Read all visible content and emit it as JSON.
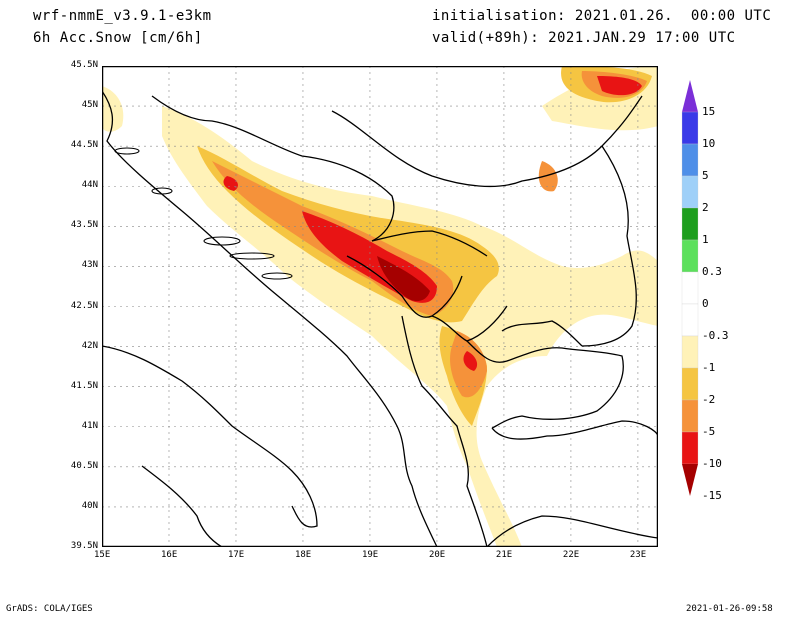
{
  "header": {
    "model": "wrf-nmmE_v3.9.1-e3km",
    "field": "6h Acc.Snow [cm/6h]",
    "init": "initialisation: 2021.01.26.  00:00 UTC",
    "valid": "valid(+89h): 2021.JAN.29 17:00 UTC"
  },
  "axes": {
    "lat_labels": [
      "45.5N",
      "45N",
      "44.5N",
      "44N",
      "43.5N",
      "43N",
      "42.5N",
      "42N",
      "41.5N",
      "41N",
      "40.5N",
      "40N",
      "39.5N"
    ],
    "lon_labels": [
      "15E",
      "16E",
      "17E",
      "18E",
      "19E",
      "20E",
      "21E",
      "22E",
      "23E"
    ],
    "lat_range": [
      39.5,
      45.5
    ],
    "lon_range": [
      15,
      23.3
    ]
  },
  "legend": {
    "labels": [
      "15",
      "10",
      "5",
      "2",
      "1",
      "0.3",
      "0",
      "-0.3",
      "-1",
      "-2",
      "-5",
      "-10",
      "-15"
    ],
    "colors": [
      "#7b2fd8",
      "#3a3ae8",
      "#4f8fe8",
      "#9fd0f8",
      "#1e9e1e",
      "#5ce05c",
      "#ffffff",
      "#ffffff",
      "#fff2b8",
      "#f5c542",
      "#f5923a",
      "#e81414",
      "#a50000"
    ]
  },
  "footer": {
    "left": "GrADS: COLA/IGES",
    "right": "2021-01-26-09:58"
  }
}
